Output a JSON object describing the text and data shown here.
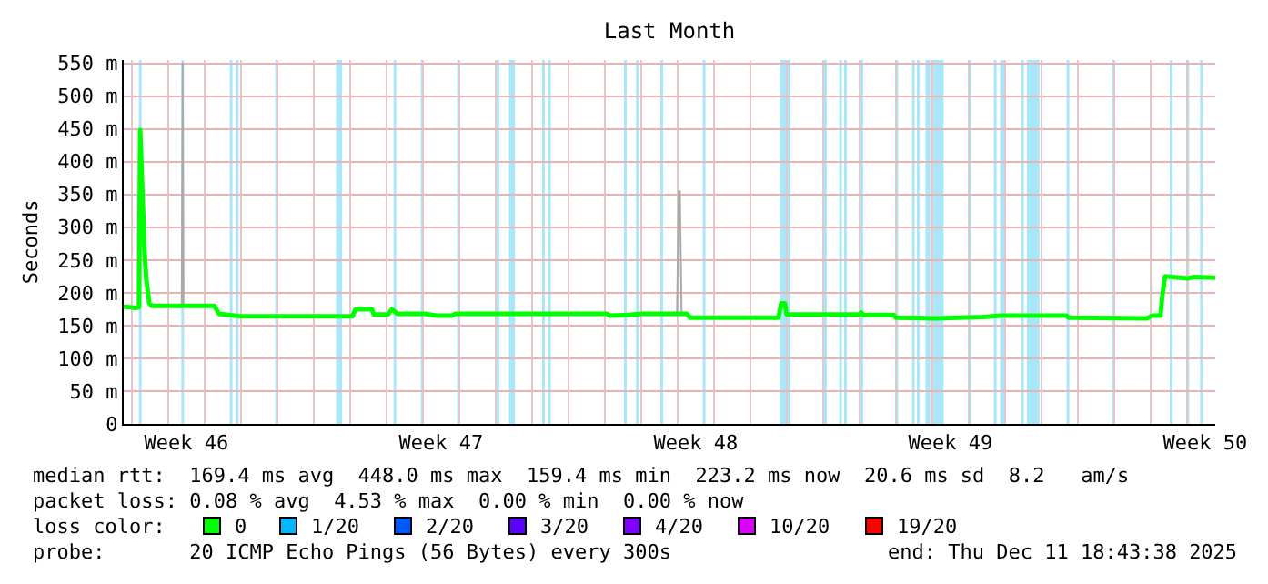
{
  "chart_data": {
    "type": "line",
    "title": "Last Month",
    "ylabel": "Seconds",
    "xlim": [
      "2025-11-11T18:43",
      "2025-12-11T18:43"
    ],
    "xticks": [
      {
        "value": "2025-11-13T12:00",
        "label": "Week 46"
      },
      {
        "value": "2025-11-20T12:00",
        "label": "Week 47"
      },
      {
        "value": "2025-11-27T12:00",
        "label": "Week 48"
      },
      {
        "value": "2025-12-04T12:00",
        "label": "Week 49"
      },
      {
        "value": "2025-12-11T12:00",
        "label": "Week 50"
      },
      {
        "value": "2025-11-12",
        "label": null
      },
      {
        "value": "2025-11-13",
        "label": null
      },
      {
        "value": "2025-11-14",
        "label": null
      },
      {
        "value": "2025-11-15",
        "label": null
      },
      {
        "value": "2025-11-16",
        "label": null
      },
      {
        "value": "2025-11-17",
        "label": null
      },
      {
        "value": "2025-11-18",
        "label": null
      },
      {
        "value": "2025-11-19",
        "label": null
      },
      {
        "value": "2025-11-20",
        "label": null
      },
      {
        "value": "2025-11-21",
        "label": null
      },
      {
        "value": "2025-11-22",
        "label": null
      },
      {
        "value": "2025-11-23",
        "label": null
      },
      {
        "value": "2025-11-24",
        "label": null
      },
      {
        "value": "2025-11-25",
        "label": null
      },
      {
        "value": "2025-11-26",
        "label": null
      },
      {
        "value": "2025-11-27",
        "label": null
      },
      {
        "value": "2025-11-28",
        "label": null
      },
      {
        "value": "2025-11-29",
        "label": null
      },
      {
        "value": "2025-11-30",
        "label": null
      },
      {
        "value": "2025-12-01",
        "label": null
      },
      {
        "value": "2025-12-02",
        "label": null
      },
      {
        "value": "2025-12-03",
        "label": null
      },
      {
        "value": "2025-12-04",
        "label": null
      },
      {
        "value": "2025-12-05",
        "label": null
      },
      {
        "value": "2025-12-06",
        "label": null
      },
      {
        "value": "2025-12-07",
        "label": null
      },
      {
        "value": "2025-12-08",
        "label": null
      },
      {
        "value": "2025-12-09",
        "label": null
      },
      {
        "value": "2025-12-10",
        "label": null
      },
      {
        "value": "2025-12-11",
        "label": null
      }
    ],
    "ylim": [
      0,
      555
    ],
    "yticks": [
      {
        "value": 0,
        "label": "0"
      },
      {
        "value": 50,
        "label": "50 m"
      },
      {
        "value": 100,
        "label": "100 m"
      },
      {
        "value": 150,
        "label": "150 m"
      },
      {
        "value": 200,
        "label": "200 m"
      },
      {
        "value": 250,
        "label": "250 m"
      },
      {
        "value": 300,
        "label": "300 m"
      },
      {
        "value": 350,
        "label": "350 m"
      },
      {
        "value": 400,
        "label": "400 m"
      },
      {
        "value": 450,
        "label": "450 m"
      },
      {
        "value": 500,
        "label": "500 m"
      },
      {
        "value": 550,
        "label": "550 m"
      }
    ],
    "grid": true,
    "legend": "bottom",
    "series": [
      {
        "color": "#aaaaaa",
        "x": [
          "2025-11-13T09:00",
          "2025-11-13T09:36",
          "2025-11-13T10:12",
          "2025-11-20T00:00",
          "2025-11-26T23:42",
          "2025-11-27T00:48",
          "2025-11-27T01:36",
          "2025-11-27T02:42"
        ],
        "values": [
          180,
          550,
          180,
          null,
          168,
          355,
          355,
          168
        ]
      },
      {
        "name": "0",
        "color": "#00ff00",
        "x": [
          "2025-11-11T18:43",
          "2025-11-12T02:24",
          "2025-11-12T04:48",
          "2025-11-12T05:36",
          "2025-11-12T08:24",
          "2025-11-12T09:36",
          "2025-11-12T11:36",
          "2025-11-12T13:12",
          "2025-11-14T06:24",
          "2025-11-14T09:36",
          "2025-11-14T23:36",
          "2025-11-18T01:36",
          "2025-11-18T03:36",
          "2025-11-18T14:24",
          "2025-11-18T15:36",
          "2025-11-19T01:12",
          "2025-11-19T03:36",
          "2025-11-19T07:12",
          "2025-11-20T01:12",
          "2025-11-20T09:36",
          "2025-11-20T19:12",
          "2025-11-20T21:36",
          "2025-11-25T01:12",
          "2025-11-25T03:36",
          "2025-11-25T15:36",
          "2025-11-26T00:00",
          "2025-11-27T06:00",
          "2025-11-27T08:24",
          "2025-11-29T18:36",
          "2025-11-29T20:24",
          "2025-11-29T22:48",
          "2025-11-30T00:00",
          "2025-12-02T00:00",
          "2025-12-02T01:12",
          "2025-12-02T02:24",
          "2025-12-02T22:48",
          "2025-12-03T00:00",
          "2025-12-04T01:12",
          "2025-12-05T09:36",
          "2025-12-05T21:36",
          "2025-12-07T16:48",
          "2025-12-07T18:00",
          "2025-12-09T21:36",
          "2025-12-10T01:12",
          "2025-12-10T06:36",
          "2025-12-10T07:48",
          "2025-12-10T09:36",
          "2025-12-11T00:36",
          "2025-12-11T04:36",
          "2025-12-11T18:43"
        ],
        "values": [
          179,
          177,
          178,
          448,
          264,
          221,
          184,
          180,
          180,
          168,
          164,
          164,
          175,
          175,
          167,
          167,
          175,
          168,
          168,
          165,
          165,
          168,
          168,
          165,
          166,
          168,
          168,
          162,
          162,
          184,
          184,
          167,
          167,
          170,
          166,
          166,
          162,
          161,
          163,
          165,
          165,
          162,
          161,
          165,
          165,
          195,
          225,
          222,
          224,
          223
        ]
      },
      {
        "name": "1/20",
        "color": "#00b8ff"
      },
      {
        "name": "2/20",
        "color": "#0059ff"
      },
      {
        "name": "3/20",
        "color": "#5e00ff"
      },
      {
        "name": "4/20",
        "color": "#7e00ff"
      },
      {
        "name": "10/20",
        "color": "#dd00ff"
      },
      {
        "name": "19/20",
        "color": "#ff0000"
      }
    ],
    "bands": [
      {
        "axis": "x",
        "from": "2025-11-12T04:42",
        "to": "2025-11-12T06:30",
        "color": "#aae6fa"
      },
      {
        "axis": "x",
        "from": "2025-11-13T08:42",
        "to": "2025-11-13T10:30",
        "color": "#aae6fa"
      },
      {
        "axis": "x",
        "from": "2025-11-14T16:42",
        "to": "2025-11-14T18:30",
        "color": "#aae6fa"
      },
      {
        "axis": "x",
        "from": "2025-11-14T20:42",
        "to": "2025-11-14T22:30",
        "color": "#aae6fa"
      },
      {
        "axis": "x",
        "from": "2025-11-15T22:42",
        "to": "2025-11-16T00:30",
        "color": "#aae6fa"
      },
      {
        "axis": "x",
        "from": "2025-11-17T14:48",
        "to": "2025-11-17T18:48",
        "color": "#aae6fa"
      },
      {
        "axis": "x",
        "from": "2025-11-19T04:42",
        "to": "2025-11-19T06:30",
        "color": "#aae6fa"
      },
      {
        "axis": "x",
        "from": "2025-11-19T22:42",
        "to": "2025-11-20T00:30",
        "color": "#aae6fa"
      },
      {
        "axis": "x",
        "from": "2025-11-20T22:42",
        "to": "2025-11-21T00:30",
        "color": "#aae6fa"
      },
      {
        "axis": "x",
        "from": "2025-11-22T00:42",
        "to": "2025-11-22T02:30",
        "color": "#aae6fa"
      },
      {
        "axis": "x",
        "from": "2025-11-22T08:48",
        "to": "2025-11-22T12:48",
        "color": "#aae6fa"
      },
      {
        "axis": "x",
        "from": "2025-11-23T06:42",
        "to": "2025-11-23T08:30",
        "color": "#aae6fa"
      },
      {
        "axis": "x",
        "from": "2025-11-23T10:42",
        "to": "2025-11-23T12:30",
        "color": "#aae6fa"
      },
      {
        "axis": "x",
        "from": "2025-11-25T12:42",
        "to": "2025-11-25T14:30",
        "color": "#aae6fa"
      },
      {
        "axis": "x",
        "from": "2025-11-25T20:42",
        "to": "2025-11-25T22:30",
        "color": "#aae6fa"
      },
      {
        "axis": "x",
        "from": "2025-11-26T12:42",
        "to": "2025-11-26T14:30",
        "color": "#aae6fa"
      },
      {
        "axis": "x",
        "from": "2025-11-27T16:42",
        "to": "2025-11-27T18:30",
        "color": "#aae6fa"
      },
      {
        "axis": "x",
        "from": "2025-11-29T19:36",
        "to": "2025-11-29T23:36",
        "color": "#aae6fa"
      },
      {
        "axis": "x",
        "from": "2025-11-30T00:42",
        "to": "2025-11-30T02:30",
        "color": "#aae6fa"
      },
      {
        "axis": "x",
        "from": "2025-12-01T00:42",
        "to": "2025-12-01T02:30",
        "color": "#aae6fa"
      },
      {
        "axis": "x",
        "from": "2025-12-01T10:42",
        "to": "2025-12-01T12:30",
        "color": "#aae6fa"
      },
      {
        "axis": "x",
        "from": "2025-12-01T13:54",
        "to": "2025-12-01T15:42",
        "color": "#aae6fa"
      },
      {
        "axis": "x",
        "from": "2025-12-02T00:42",
        "to": "2025-12-02T02:30",
        "color": "#aae6fa"
      },
      {
        "axis": "x",
        "from": "2025-12-02T23:36",
        "to": "2025-12-03T01:36",
        "color": "#aae6fa"
      },
      {
        "axis": "x",
        "from": "2025-12-03T10:42",
        "to": "2025-12-03T12:30",
        "color": "#aae6fa"
      },
      {
        "axis": "x",
        "from": "2025-12-03T13:54",
        "to": "2025-12-03T15:42",
        "color": "#aae6fa"
      },
      {
        "axis": "x",
        "from": "2025-12-03T19:36",
        "to": "2025-12-03T22:48",
        "color": "#aae6fa"
      },
      {
        "axis": "x",
        "from": "2025-12-04T00:48",
        "to": "2025-12-04T07:36",
        "color": "#aae6fa"
      },
      {
        "axis": "x",
        "from": "2025-12-04T23:54",
        "to": "2025-12-05T01:42",
        "color": "#aae6fa"
      },
      {
        "axis": "x",
        "from": "2025-12-05T16:42",
        "to": "2025-12-05T18:30",
        "color": "#aae6fa"
      },
      {
        "axis": "x",
        "from": "2025-12-05T20:48",
        "to": "2025-12-06T00:24",
        "color": "#aae6fa"
      },
      {
        "axis": "x",
        "from": "2025-12-06T10:42",
        "to": "2025-12-06T12:30",
        "color": "#aae6fa"
      },
      {
        "axis": "x",
        "from": "2025-12-06T14:24",
        "to": "2025-12-06T22:48",
        "color": "#aae6fa"
      },
      {
        "axis": "x",
        "from": "2025-12-07T16:42",
        "to": "2025-12-07T18:30",
        "color": "#aae6fa"
      },
      {
        "axis": "x",
        "from": "2025-12-08T22:42",
        "to": "2025-12-09T00:30",
        "color": "#aae6fa"
      },
      {
        "axis": "x",
        "from": "2025-12-10T12:42",
        "to": "2025-12-10T14:30",
        "color": "#aae6fa"
      },
      {
        "axis": "x",
        "from": "2025-12-10T23:42",
        "to": "2025-12-11T01:30",
        "color": "#aae6fa"
      },
      {
        "axis": "x",
        "from": "2025-12-11T08:42",
        "to": "2025-12-11T10:30",
        "color": "#aae6fa"
      }
    ],
    "annotations": [
      "median rtt:  169.4 ms avg  448.0 ms max  159.4 ms min  223.2 ms now  20.6 ms sd  8.2   am/s",
      "packet loss: 0.08 % avg  4.53 % max  0.00 % min  0.00 % now",
      "loss color:",
      "probe:       20 ICMP Echo Pings (56 Bytes) every 300s",
      "end: Thu Dec 11 18:43:38 2025"
    ]
  }
}
